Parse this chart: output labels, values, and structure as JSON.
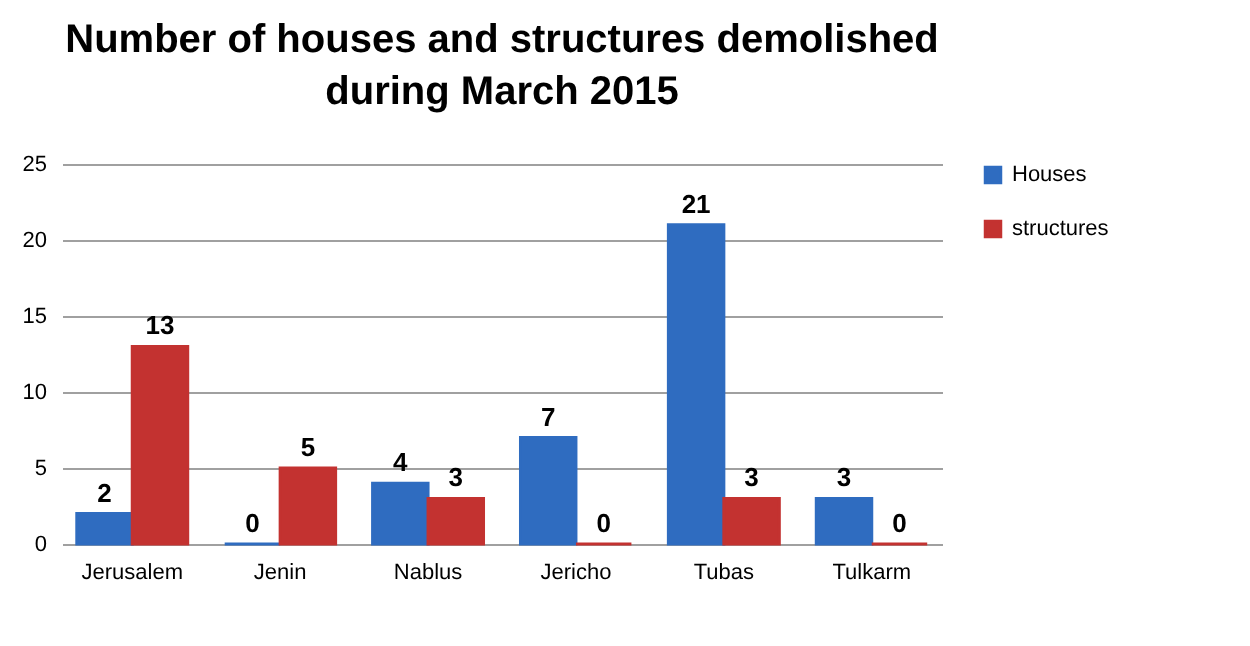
{
  "chart_data": {
    "type": "bar",
    "title": "Number of houses and structures demolished during March 2015",
    "categories": [
      "Jerusalem",
      "Jenin",
      "Nablus",
      "Jericho",
      "Tubas",
      "Tulkarm"
    ],
    "series": [
      {
        "name": "Houses",
        "color": "#2f6cc0",
        "values": [
          2,
          0,
          4,
          7,
          21,
          3
        ]
      },
      {
        "name": "structures",
        "color": "#c33230",
        "values": [
          13,
          5,
          3,
          0,
          3,
          0
        ]
      }
    ],
    "ylim": [
      0,
      25
    ],
    "yticks": [
      0,
      5,
      10,
      15,
      20,
      25
    ],
    "grid": true,
    "legend": "right",
    "data_labels": true
  }
}
